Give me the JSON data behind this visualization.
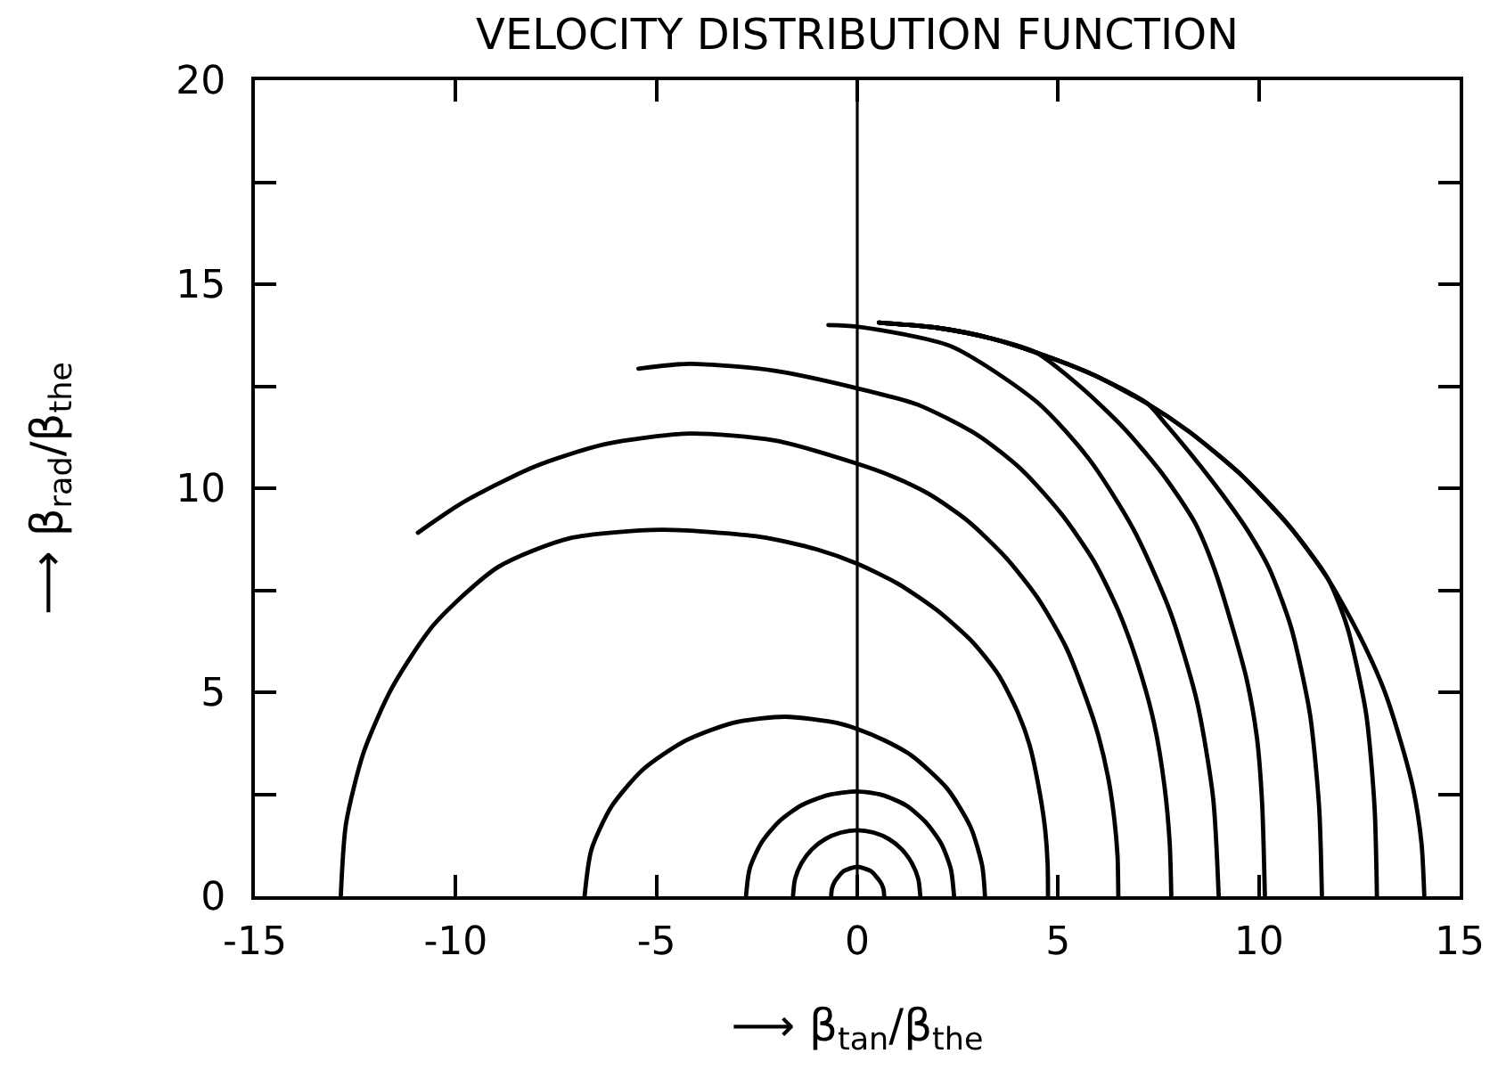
{
  "chart_data": {
    "type": "line",
    "title": "VELOCITY DISTRIBUTION FUNCTION",
    "xlabel": "⟶ β$_{tan}$/β$_{the}$",
    "ylabel": "⟶ β$_{rad}$/β$_{the}$",
    "xlim": [
      -15,
      15
    ],
    "ylim": [
      0,
      20
    ],
    "xticks": [
      -15,
      -10,
      -5,
      0,
      5,
      10,
      15
    ],
    "yticks": [
      0,
      {
        "value": 2.5,
        "label": null
      },
      5,
      {
        "value": 7.5,
        "label": null
      },
      10,
      {
        "value": 12.5,
        "label": null
      },
      15,
      {
        "value": 17.5,
        "label": null
      },
      20
    ],
    "ref_lines": [
      {
        "axis": "x",
        "value": 0
      }
    ],
    "marker": "none",
    "line_style": "solid",
    "series": [
      {
        "color": "#000000",
        "x": [
          -0.65,
          -0.63,
          -0.56,
          -0.33,
          0,
          0.33,
          0.57,
          0.65,
          0.67
        ],
        "values": [
          0,
          0.19,
          0.36,
          0.62,
          0.72,
          0.62,
          0.36,
          0.19,
          0
        ]
      },
      {
        "color": "#000000",
        "x": [
          -1.6,
          -1.55,
          -1.39,
          -1.13,
          -0.8,
          -0.41,
          0,
          0.41,
          0.79,
          1.11,
          1.36,
          1.52,
          1.57
        ],
        "values": [
          0,
          0.42,
          0.81,
          1.15,
          1.4,
          1.56,
          1.62,
          1.56,
          1.4,
          1.15,
          0.81,
          0.42,
          0
        ]
      },
      {
        "color": "#000000",
        "x": [
          -2.77,
          -2.68,
          -2.4,
          -1.96,
          -1.39,
          -0.72,
          0,
          0.62,
          1.21,
          1.7,
          2.09,
          2.33,
          2.41
        ],
        "values": [
          0,
          0.67,
          1.29,
          1.82,
          2.23,
          2.48,
          2.57,
          2.48,
          2.23,
          1.82,
          1.29,
          0.67,
          0
        ]
      },
      {
        "color": "#000000",
        "x": [
          -6.79,
          -6.62,
          -6.12,
          -5.33,
          -4.3,
          -3.09,
          -1.8,
          -0.51,
          0,
          0.7,
          1.35,
          2.23,
          2.82,
          3.11,
          3.18
        ],
        "values": [
          0,
          1.14,
          2.2,
          3.11,
          3.8,
          4.25,
          4.4,
          4.25,
          4.1,
          3.81,
          3.45,
          2.65,
          1.7,
          0.75,
          0
        ]
      },
      {
        "color": "#000000",
        "x": [
          -12.86,
          -12.73,
          -12.29,
          -11.59,
          -10.53,
          -8.94,
          -7.18,
          -4.88,
          -2.41,
          -1.0,
          0,
          1.03,
          2.0,
          2.9,
          3.52,
          4.0,
          4.29,
          4.55,
          4.68,
          4.74,
          4.75
        ],
        "values": [
          0,
          1.78,
          3.53,
          5.1,
          6.67,
          8.07,
          8.77,
          8.98,
          8.81,
          8.5,
          8.15,
          7.65,
          7.0,
          6.2,
          5.42,
          4.5,
          3.71,
          2.5,
          1.62,
          0.8,
          0
        ]
      },
      {
        "color": "#000000",
        "x": [
          -10.94,
          -9.82,
          -8.06,
          -6.29,
          -4.18,
          -2.06,
          0,
          0.9,
          1.8,
          2.75,
          3.7,
          4.5,
          5.2,
          5.7,
          6.0,
          6.25,
          6.4,
          6.48,
          6.5
        ],
        "values": [
          8.91,
          9.65,
          10.52,
          11.08,
          11.34,
          11.17,
          10.6,
          10.28,
          9.85,
          9.2,
          8.3,
          7.3,
          6.1,
          4.85,
          3.95,
          2.9,
          1.9,
          1.0,
          0
        ]
      },
      {
        "color": "#000000",
        "x": [
          -5.45,
          -4.18,
          -2.06,
          0,
          1.5,
          3.0,
          4.1,
          5.1,
          5.9,
          6.5,
          7.0,
          7.4,
          7.65,
          7.78,
          7.82
        ],
        "values": [
          12.93,
          13.05,
          12.88,
          12.45,
          12.05,
          11.3,
          10.45,
          9.35,
          8.2,
          7.0,
          5.65,
          4.2,
          2.7,
          1.3,
          0
        ]
      },
      {
        "color": "#000000",
        "x": [
          -0.72,
          0,
          2.33,
          4.5,
          5.79,
          6.89,
          7.79,
          8.46,
          8.86,
          9.0
        ],
        "values": [
          14.0,
          13.96,
          13.48,
          12.09,
          10.69,
          8.97,
          6.98,
          4.77,
          2.42,
          0
        ]
      },
      {
        "color": "#000000",
        "x": [
          0.54,
          2.0,
          3.3,
          4.44,
          5.6,
          6.64,
          7.6,
          8.41,
          8.9,
          9.4,
          9.7,
          9.95,
          10.08,
          10.15
        ],
        "values": [
          14.06,
          13.93,
          13.68,
          13.33,
          12.45,
          11.47,
          10.35,
          9.15,
          8.0,
          6.4,
          5.3,
          3.9,
          2.3,
          0
        ]
      },
      {
        "color": "#000000",
        "x": [
          0.54,
          2.0,
          3.3,
          4.44,
          5.9,
          7.23,
          7.7,
          8.5,
          9.2,
          9.73,
          10.25,
          10.8,
          11.27,
          11.5,
          11.57
        ],
        "values": [
          14.06,
          13.93,
          13.68,
          13.33,
          12.77,
          12.07,
          11.55,
          10.6,
          9.7,
          8.95,
          8.05,
          6.6,
          4.48,
          2.2,
          0
        ]
      },
      {
        "color": "#000000",
        "x": [
          0.54,
          2.0,
          3.3,
          4.44,
          5.9,
          7.23,
          8.26,
          9.5,
          10.76,
          11.72,
          12.2,
          12.67,
          12.88,
          12.94
        ],
        "values": [
          14.06,
          13.93,
          13.68,
          13.33,
          12.77,
          12.07,
          11.39,
          10.38,
          9.07,
          7.78,
          6.6,
          4.48,
          2.2,
          0
        ]
      },
      {
        "color": "#000000",
        "x": [
          0.54,
          2.0,
          3.3,
          4.44,
          5.9,
          7.23,
          8.26,
          9.5,
          10.76,
          11.72,
          12.5,
          13.1,
          13.5,
          13.85,
          14.05,
          14.12
        ],
        "values": [
          14.06,
          13.93,
          13.68,
          13.33,
          12.77,
          12.07,
          11.39,
          10.38,
          9.07,
          7.78,
          6.4,
          5.1,
          3.9,
          2.6,
          1.3,
          0
        ]
      }
    ]
  }
}
